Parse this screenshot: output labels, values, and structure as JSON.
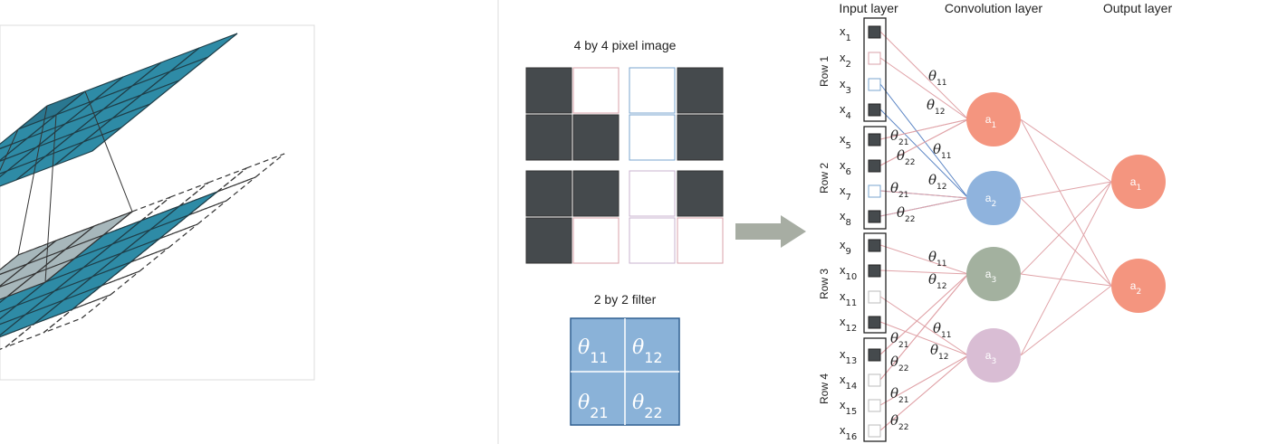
{
  "pixel_image": {
    "title": "4 by 4 pixel image",
    "pixels": [
      [
        "dark",
        "white",
        "white",
        "dark"
      ],
      [
        "dark",
        "dark",
        "white",
        "dark"
      ],
      [
        "dark",
        "dark",
        "white",
        "dark"
      ],
      [
        "dark",
        "white",
        "white",
        "white"
      ]
    ]
  },
  "filter": {
    "title": "2 by 2 filter",
    "cells": [
      {
        "sym": "θ",
        "sub": "11"
      },
      {
        "sym": "θ",
        "sub": "12"
      },
      {
        "sym": "θ",
        "sub": "21"
      },
      {
        "sym": "θ",
        "sub": "22"
      }
    ]
  },
  "network": {
    "headers": {
      "input": "Input layer",
      "conv": "Convolution layer",
      "output": "Output layer"
    },
    "rows": [
      "Row 1",
      "Row 2",
      "Row 3",
      "Row 4"
    ],
    "inputs": [
      {
        "sym": "x",
        "sub": "1",
        "filled": true
      },
      {
        "sym": "x",
        "sub": "2",
        "filled": false
      },
      {
        "sym": "x",
        "sub": "3",
        "filled": false
      },
      {
        "sym": "x",
        "sub": "4",
        "filled": true
      },
      {
        "sym": "x",
        "sub": "5",
        "filled": true
      },
      {
        "sym": "x",
        "sub": "6",
        "filled": true
      },
      {
        "sym": "x",
        "sub": "7",
        "filled": false
      },
      {
        "sym": "x",
        "sub": "8",
        "filled": true
      },
      {
        "sym": "x",
        "sub": "9",
        "filled": true
      },
      {
        "sym": "x",
        "sub": "10",
        "filled": true
      },
      {
        "sym": "x",
        "sub": "11",
        "filled": false
      },
      {
        "sym": "x",
        "sub": "12",
        "filled": true
      },
      {
        "sym": "x",
        "sub": "13",
        "filled": true
      },
      {
        "sym": "x",
        "sub": "14",
        "filled": false
      },
      {
        "sym": "x",
        "sub": "15",
        "filled": false
      },
      {
        "sym": "x",
        "sub": "16",
        "filled": false
      }
    ],
    "conv_nodes": [
      {
        "sym": "a",
        "sub": "1",
        "color": "#f4957f"
      },
      {
        "sym": "a",
        "sub": "2",
        "color": "#8fb3dd"
      },
      {
        "sym": "a",
        "sub": "3",
        "color": "#a3b19f"
      },
      {
        "sym": "a",
        "sub": "3",
        "color": "#d9bdd4"
      }
    ],
    "output_nodes": [
      {
        "sym": "a",
        "sub": "1",
        "color": "#f4957f"
      },
      {
        "sym": "a",
        "sub": "2",
        "color": "#f4957f"
      }
    ],
    "weight_labels": [
      {
        "sym": "θ",
        "sub": "11"
      },
      {
        "sym": "θ",
        "sub": "12"
      },
      {
        "sym": "θ",
        "sub": "21"
      },
      {
        "sym": "θ",
        "sub": "22"
      },
      {
        "sym": "θ",
        "sub": "11"
      },
      {
        "sym": "θ",
        "sub": "12"
      },
      {
        "sym": "θ",
        "sub": "21"
      },
      {
        "sym": "θ",
        "sub": "22"
      },
      {
        "sym": "θ",
        "sub": "11"
      },
      {
        "sym": "θ",
        "sub": "12"
      },
      {
        "sym": "θ",
        "sub": "21"
      },
      {
        "sym": "θ",
        "sub": "22"
      },
      {
        "sym": "θ",
        "sub": "11"
      },
      {
        "sym": "θ",
        "sub": "12"
      },
      {
        "sym": "θ",
        "sub": "21"
      },
      {
        "sym": "θ",
        "sub": "22"
      }
    ]
  },
  "colors": {
    "dark_pixel": "#454a4d",
    "teal": "#2e8ba6",
    "grey_cell": "#a7b7bb",
    "filter_fill": "#8ab2d8",
    "pink_line": "#e0a3a8",
    "blue_line": "#5a84c4",
    "arrow": "#a7ada3"
  }
}
